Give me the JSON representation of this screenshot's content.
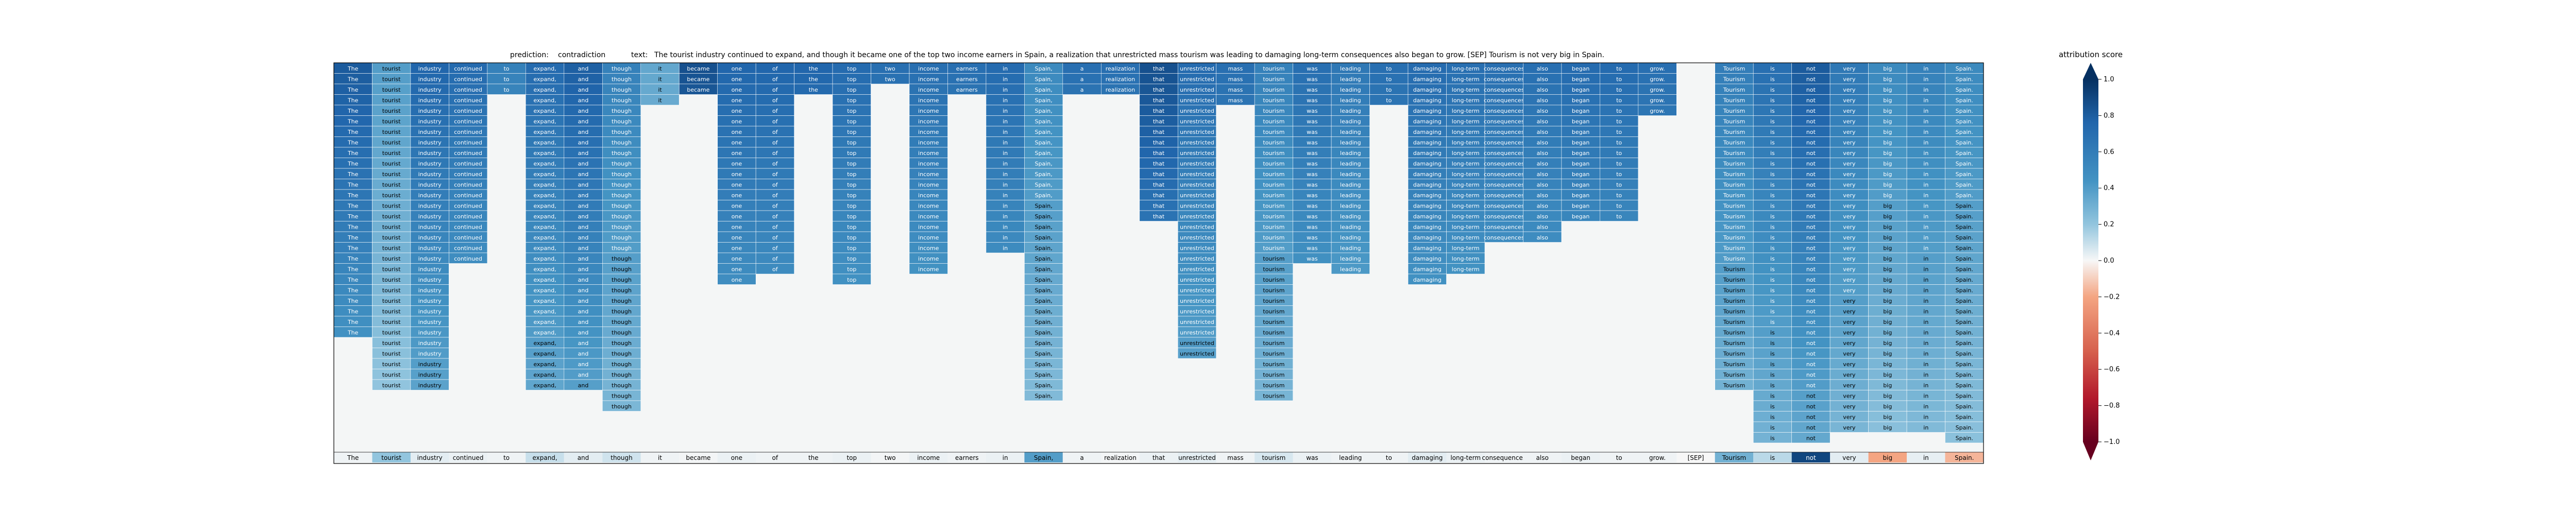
{
  "header": {
    "prediction_label": "prediction:",
    "prediction_value": "contradiction",
    "text_label": "text:",
    "text_value": "The tourist industry continued to expand, and though it became one of the top two income earners in Spain, a realization that unrestricted mass tourism was leading to damaging long-term consequences also began to grow. [SEP] Tourism is not very big in Spain."
  },
  "colorbar": {
    "title": "attribution score",
    "ticks": [
      "1.0",
      "0.8",
      "0.6",
      "0.4",
      "0.2",
      "0.0",
      "−0.2",
      "−0.4",
      "−0.6",
      "−0.8",
      "−1.0"
    ],
    "colors": {
      "max": "#08306b",
      "mid": "#f7f7f7",
      "min": "#67001f"
    }
  },
  "chart_data": {
    "type": "heatmap",
    "title": "prediction:  contradiction     text:  The tourist industry continued to expand, and though it became one of the top two income earners in Spain, a realization that unrestricted mass tourism was leading to damaging long-term consequences also began to grow. [SEP] Tourism is not very big in Spain.",
    "tokens": [
      "The",
      "tourist",
      "industry",
      "continued",
      "to",
      "expand,",
      "and",
      "though",
      "it",
      "became",
      "one",
      "of",
      "the",
      "top",
      "two",
      "income",
      "earners",
      "in",
      "Spain,",
      "a",
      "realization",
      "that",
      "unrestricted",
      "mass",
      "tourism",
      "was",
      "leading",
      "to",
      "damaging",
      "long-term",
      "consequences",
      "also",
      "began",
      "to",
      "grow.",
      "[SEP]",
      "Tourism",
      "is",
      "not",
      "very",
      "big",
      "in",
      "Spain."
    ],
    "levels": 38,
    "depth": [
      26,
      31,
      31,
      19,
      3,
      31,
      31,
      33,
      4,
      3,
      21,
      20,
      3,
      21,
      2,
      20,
      3,
      18,
      32,
      3,
      3,
      15,
      28,
      4,
      32,
      19,
      20,
      4,
      21,
      20,
      17,
      17,
      15,
      15,
      5,
      0,
      31,
      36,
      36,
      35,
      35,
      35,
      36
    ],
    "strength": [
      0.8,
      0.45,
      0.75,
      0.72,
      0.6,
      0.72,
      0.78,
      0.6,
      0.4,
      0.85,
      0.75,
      0.75,
      0.75,
      0.72,
      0.7,
      0.7,
      0.7,
      0.72,
      0.55,
      0.7,
      0.7,
      0.85,
      0.72,
      0.7,
      0.6,
      0.7,
      0.65,
      0.7,
      0.72,
      0.7,
      0.7,
      0.7,
      0.72,
      0.72,
      0.7,
      0.0,
      0.62,
      0.7,
      0.8,
      0.65,
      0.55,
      0.6,
      0.55
    ],
    "attribution": [
      0.02,
      0.25,
      0.05,
      0.03,
      0.02,
      0.12,
      0.05,
      0.1,
      0.02,
      0.01,
      0.03,
      0.02,
      0.02,
      0.03,
      0.01,
      0.03,
      0.02,
      0.03,
      0.45,
      0.02,
      0.01,
      0.03,
      0.05,
      0.02,
      0.08,
      0.03,
      0.02,
      0.02,
      0.05,
      0.03,
      0.02,
      0.02,
      0.03,
      0.02,
      0.02,
      0.0,
      0.35,
      0.15,
      0.9,
      0.05,
      -0.25,
      0.04,
      -0.2
    ],
    "vmin": -1.0,
    "vmax": 1.0,
    "colormap": "RdBu"
  }
}
